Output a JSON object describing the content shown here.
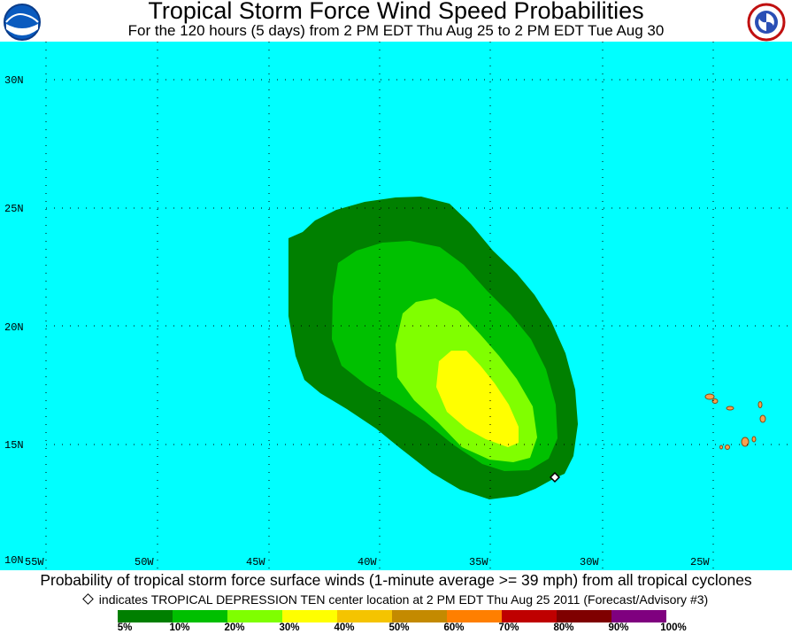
{
  "header": {
    "title": "Tropical Storm Force Wind Speed Probabilities",
    "subtitle": "For the 120 hours (5 days) from 2 PM EDT Thu Aug 25 to 2 PM EDT Tue Aug 30",
    "left_logo_text": "NOAA",
    "right_logo_text": "NATIONAL WEATHER SERVICE"
  },
  "map": {
    "lat_labels": [
      "30N",
      "25N",
      "20N",
      "15N",
      "10N"
    ],
    "lon_labels": [
      "55W",
      "50W",
      "45W",
      "40W",
      "35W",
      "30W",
      "25W"
    ],
    "ocean_color": "#00ffff",
    "storm_center_marker": "diamond"
  },
  "footer": {
    "main": "Probability of tropical storm force surface winds (1-minute average >= 39 mph) from all tropical cyclones",
    "note": "indicates TROPICAL DEPRESSION TEN center location at 2 PM EDT Thu Aug 25 2011 (Forecast/Advisory #3)"
  },
  "legend": {
    "colors": [
      "#007f00",
      "#00bf00",
      "#7fff00",
      "#ffff00",
      "#f5c400",
      "#c48a00",
      "#ff7f00",
      "#bf0000",
      "#7f0000",
      "#7f007f"
    ],
    "labels": [
      "5%",
      "10%",
      "20%",
      "30%",
      "40%",
      "50%",
      "60%",
      "70%",
      "80%",
      "90%",
      "100%"
    ]
  }
}
